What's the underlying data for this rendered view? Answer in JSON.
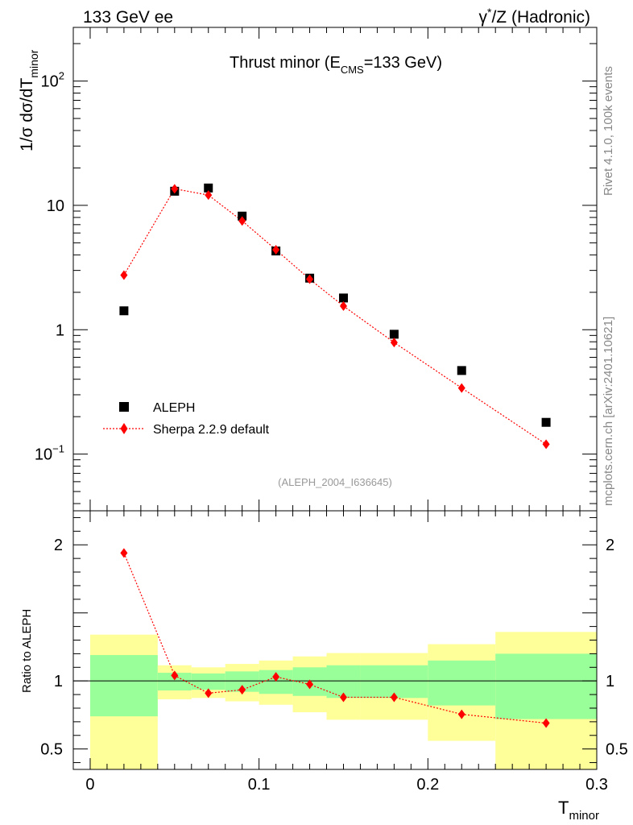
{
  "header": {
    "left": "133 GeV ee",
    "right_main": "γ",
    "right_sup": "*",
    "right_rest": "/Z (Hadronic)"
  },
  "side_labels": {
    "rivet": "Rivet 4.1.0,  100k events",
    "mcplots": "mcplots.cern.ch [arXiv:2401.10621]"
  },
  "chart_data": {
    "type": "scatter",
    "title_prefix": "Thrust minor (E",
    "title_sub": "CMS",
    "title_suffix": "=133 GeV)",
    "analysis_id": "(ALEPH_2004_I636645)",
    "ylabel_main": "1/σ  dσ/dT",
    "ylabel_sub": "minor",
    "xlabel_main": "T",
    "xlabel_sub": "minor",
    "xlim": [
      -0.01,
      0.3
    ],
    "ylim_main": [
      0.035,
      270
    ],
    "ylog": true,
    "main_yticks": [
      {
        "value": 100,
        "base": "10",
        "exp": "2"
      },
      {
        "value": 10,
        "base": "10",
        "exp": ""
      },
      {
        "value": 1,
        "base": "1",
        "exp": ""
      },
      {
        "value": 0.1,
        "base": "10",
        "exp": "−1"
      }
    ],
    "xticks": [
      {
        "value": 0,
        "label": "0"
      },
      {
        "value": 0.1,
        "label": "0.1"
      },
      {
        "value": 0.2,
        "label": "0.2"
      },
      {
        "value": 0.3,
        "label": "0.3"
      }
    ],
    "legend": [
      {
        "name": "ALEPH",
        "marker": "square",
        "color": "#000000"
      },
      {
        "name": "Sherpa 2.2.9 default",
        "marker": "diamond",
        "color": "#ff0000"
      }
    ],
    "bins": [
      {
        "lo": 0.0,
        "hi": 0.04,
        "x": 0.02
      },
      {
        "lo": 0.04,
        "hi": 0.06,
        "x": 0.05
      },
      {
        "lo": 0.06,
        "hi": 0.08,
        "x": 0.07
      },
      {
        "lo": 0.08,
        "hi": 0.1,
        "x": 0.09
      },
      {
        "lo": 0.1,
        "hi": 0.12,
        "x": 0.11
      },
      {
        "lo": 0.12,
        "hi": 0.14,
        "x": 0.13
      },
      {
        "lo": 0.14,
        "hi": 0.16,
        "x": 0.15
      },
      {
        "lo": 0.16,
        "hi": 0.2,
        "x": 0.18
      },
      {
        "lo": 0.2,
        "hi": 0.24,
        "x": 0.22
      },
      {
        "lo": 0.24,
        "hi": 0.3,
        "x": 0.27
      }
    ],
    "series": [
      {
        "name": "ALEPH",
        "values": [
          1.42,
          13.0,
          13.8,
          8.2,
          4.3,
          2.6,
          1.8,
          0.92,
          0.47,
          0.18
        ]
      },
      {
        "name": "Sherpa 2.2.9 default",
        "values": [
          2.75,
          13.6,
          12.1,
          7.5,
          4.4,
          2.55,
          1.55,
          0.79,
          0.34,
          0.12
        ]
      }
    ],
    "ratio": {
      "ylabel": "Ratio to ALEPH",
      "ylim": [
        0.35,
        2.25
      ],
      "yticks": [
        {
          "value": 2,
          "label": "2"
        },
        {
          "value": 1.5,
          "label": ""
        },
        {
          "value": 1,
          "label": "1"
        },
        {
          "value": 0.5,
          "label": "0.5"
        }
      ],
      "values": [
        1.94,
        1.04,
        0.91,
        0.935,
        1.03,
        0.975,
        0.88,
        0.88,
        0.755,
        0.69
      ],
      "band_green": [
        [
          0.74,
          1.19
        ],
        [
          0.93,
          1.06
        ],
        [
          0.935,
          1.055
        ],
        [
          0.92,
          1.07
        ],
        [
          0.905,
          1.08
        ],
        [
          0.89,
          1.1
        ],
        [
          0.875,
          1.115
        ],
        [
          0.875,
          1.115
        ],
        [
          0.82,
          1.15
        ],
        [
          0.72,
          1.2
        ]
      ],
      "band_yellow": [
        [
          0.35,
          1.34
        ],
        [
          0.865,
          1.115
        ],
        [
          0.875,
          1.1
        ],
        [
          0.85,
          1.125
        ],
        [
          0.825,
          1.15
        ],
        [
          0.77,
          1.18
        ],
        [
          0.715,
          1.205
        ],
        [
          0.715,
          1.205
        ],
        [
          0.56,
          1.27
        ],
        [
          0.35,
          1.36
        ]
      ],
      "colors": {
        "green": "#99ff99",
        "yellow": "#ffff99"
      }
    },
    "colors": {
      "data": "#000000",
      "mc": "#ff0000",
      "analysis_text": "#999999"
    }
  }
}
